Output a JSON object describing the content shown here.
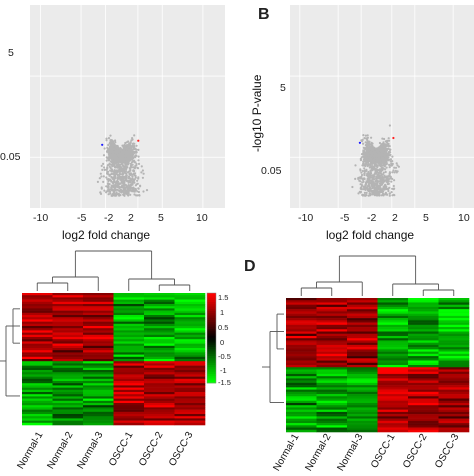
{
  "panels": {
    "B_letter": "B",
    "D_letter": "D"
  },
  "volcano_A": {
    "xlabel": "log2 fold change",
    "ylabel": "",
    "xticks": [
      "-10",
      "-5",
      "-2",
      "2",
      "5",
      "10"
    ],
    "yticks": [
      "5",
      "0.05"
    ]
  },
  "volcano_B": {
    "xlabel": "log2 fold change",
    "ylabel": "-log10 P-value",
    "xticks": [
      "-10",
      "-5",
      "-2",
      "2",
      "5",
      "10"
    ],
    "yticks": [
      "5",
      "0.05"
    ]
  },
  "heatmap_C": {
    "samples": [
      "Normal-1",
      "Normal-2",
      "Normal-3",
      "OSCC-1",
      "OSCC-2",
      "OSCC-3"
    ],
    "colorbar_ticks": [
      "1.5",
      "1",
      "0.5",
      "0",
      "-0.5",
      "-1",
      "-1.5"
    ]
  },
  "heatmap_D": {
    "samples": [
      "Normal-1",
      "Normal-2",
      "Normal-3",
      "OSCC-1",
      "OSCC-2",
      "OSCC-3"
    ]
  },
  "colors": {
    "down": "#1a1aff",
    "up": "#ff2020",
    "ns": "#b4b4b4",
    "grid_bg": "#ebebeb",
    "hm_high": "#ff0000",
    "hm_mid": "#000000",
    "hm_low": "#00ff00"
  },
  "chart_data": [
    {
      "type": "scatter",
      "title": "",
      "xlabel": "log2 fold change",
      "ylabel": "",
      "xticks": [
        -10,
        -5,
        -2,
        2,
        5,
        10
      ],
      "ylim": [
        0,
        9
      ],
      "thresholds": {
        "log2fc": [
          -2,
          2
        ],
        "p": 0.05
      },
      "series": [
        {
          "values_desc": "down",
          "color": "#1a1aff"
        },
        {
          "values_desc": "up",
          "color": "#ff2020"
        },
        {
          "values_desc": "ns",
          "color": "#b4b4b4"
        }
      ]
    },
    {
      "type": "scatter",
      "title": "",
      "xlabel": "log2 fold change",
      "ylabel": "-log10 P-value",
      "xticks": [
        -10,
        -5,
        -2,
        2,
        5,
        10
      ],
      "ylim": [
        0,
        9
      ],
      "thresholds": {
        "log2fc": [
          -2,
          2
        ],
        "p": 0.05
      }
    },
    {
      "type": "heatmap",
      "x": [
        "Normal-1",
        "Normal-2",
        "Normal-3",
        "OSCC-1",
        "OSCC-2",
        "OSCC-3"
      ],
      "colorbar_range": [
        -1.5,
        1.5
      ]
    },
    {
      "type": "heatmap",
      "x": [
        "Normal-1",
        "Normal-2",
        "Normal-3",
        "OSCC-1",
        "OSCC-2",
        "OSCC-3"
      ]
    }
  ]
}
